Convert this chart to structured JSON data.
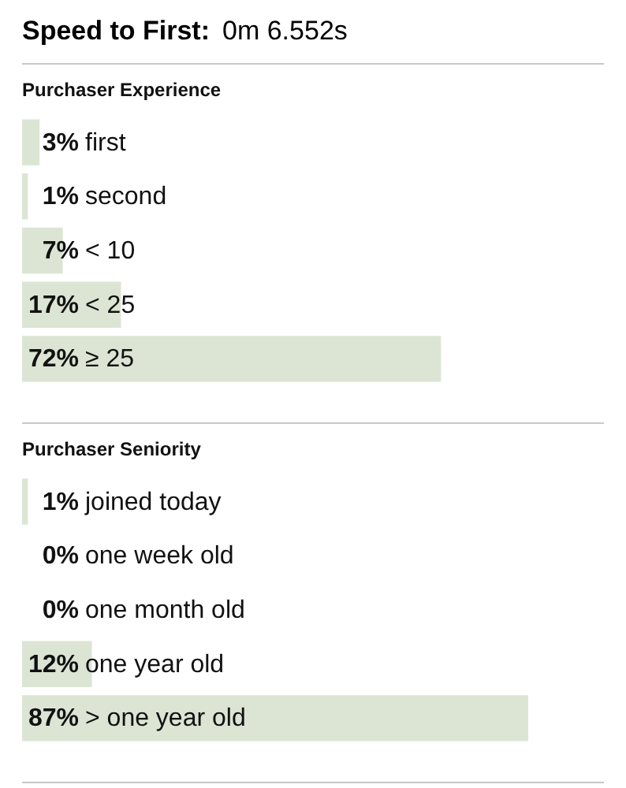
{
  "chart_data": [
    {
      "type": "other",
      "title": "Speed to First:",
      "annotations": [
        "0m 6.552s"
      ]
    },
    {
      "type": "bar",
      "orientation": "horizontal",
      "title": "Purchaser Experience",
      "categories": [
        "first",
        "second",
        "< 10",
        "< 25",
        "≥ 25"
      ],
      "values": [
        3,
        1,
        7,
        17,
        72
      ],
      "value_labels": [
        "3%",
        "1%",
        "7%",
        "17%",
        "72%"
      ],
      "color": "#dce5d4",
      "xlim": [
        0,
        100
      ]
    },
    {
      "type": "bar",
      "orientation": "horizontal",
      "title": "Purchaser Seniority",
      "categories": [
        "joined today",
        "one week old",
        "one month old",
        "one year old",
        "> one year old"
      ],
      "values": [
        1,
        0,
        0,
        12,
        87
      ],
      "value_labels": [
        "1%",
        "0%",
        "0%",
        "12%",
        "87%"
      ],
      "color": "#dce5d4",
      "xlim": [
        0,
        100
      ]
    }
  ]
}
